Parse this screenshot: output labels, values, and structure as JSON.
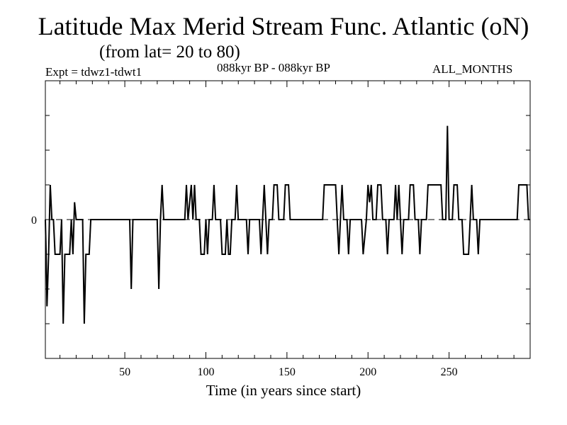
{
  "title": "Latitude Max Merid Stream Func. Atlantic (oN)",
  "subtitle": "(from lat= 20 to 80)",
  "expt": "Expt = tdwz1-tdwt1",
  "period": "088kyr BP - 088kyr BP",
  "months": "ALL_MONTHS",
  "chart_data": {
    "type": "line",
    "xlabel": "Time (in years since start)",
    "ylabel": "",
    "xlim": [
      1,
      300
    ],
    "ylim": [
      -4,
      4
    ],
    "x_ticks": [
      50,
      100,
      150,
      200,
      250
    ],
    "y_tick_labels": [
      {
        "value": 0,
        "label": "0"
      }
    ],
    "zero_line": "dashed",
    "series": [
      {
        "points": [
          [
            1,
            0
          ],
          [
            1.5,
            -1
          ],
          [
            2,
            -2.5
          ],
          [
            3,
            -1
          ],
          [
            4,
            1
          ],
          [
            5,
            0
          ],
          [
            6,
            0
          ],
          [
            7,
            -1
          ],
          [
            10,
            -1
          ],
          [
            11,
            0
          ],
          [
            12,
            -3
          ],
          [
            13,
            -1
          ],
          [
            16,
            -1
          ],
          [
            17,
            0
          ],
          [
            18,
            -1
          ],
          [
            19,
            0.5
          ],
          [
            20,
            0
          ],
          [
            24,
            0
          ],
          [
            25,
            -3
          ],
          [
            26,
            -1
          ],
          [
            28,
            -1
          ],
          [
            29,
            0
          ],
          [
            53,
            0
          ],
          [
            54,
            -2
          ],
          [
            55,
            0
          ],
          [
            70,
            0
          ],
          [
            71,
            -2
          ],
          [
            72,
            0
          ],
          [
            73,
            1
          ],
          [
            74,
            0
          ],
          [
            87,
            0
          ],
          [
            88,
            1
          ],
          [
            89,
            0
          ],
          [
            91,
            1
          ],
          [
            92,
            0
          ],
          [
            93,
            1
          ],
          [
            94,
            0
          ],
          [
            96,
            0
          ],
          [
            97,
            -1
          ],
          [
            99,
            -1
          ],
          [
            100,
            0
          ],
          [
            101,
            -1
          ],
          [
            102,
            0
          ],
          [
            104,
            0
          ],
          [
            105,
            1
          ],
          [
            106,
            0
          ],
          [
            109,
            0
          ],
          [
            110,
            -1
          ],
          [
            112,
            -1
          ],
          [
            113,
            0
          ],
          [
            114,
            -1
          ],
          [
            115,
            -1
          ],
          [
            116,
            0
          ],
          [
            118,
            0
          ],
          [
            119,
            1
          ],
          [
            120,
            0
          ],
          [
            125,
            0
          ],
          [
            126,
            -1
          ],
          [
            127,
            0
          ],
          [
            133,
            0
          ],
          [
            134,
            -1
          ],
          [
            135,
            0
          ],
          [
            136,
            1
          ],
          [
            137,
            0
          ],
          [
            138,
            -1
          ],
          [
            139,
            0
          ],
          [
            141,
            0
          ],
          [
            142,
            1
          ],
          [
            144,
            1
          ],
          [
            145,
            0
          ],
          [
            148,
            0
          ],
          [
            149,
            1
          ],
          [
            151,
            1
          ],
          [
            152,
            0
          ],
          [
            172,
            0
          ],
          [
            173,
            1
          ],
          [
            180,
            1
          ],
          [
            181,
            0
          ],
          [
            182,
            -1
          ],
          [
            183,
            0
          ],
          [
            184,
            1
          ],
          [
            185,
            0
          ],
          [
            187,
            0
          ],
          [
            188,
            -1
          ],
          [
            189,
            0
          ],
          [
            196,
            0
          ],
          [
            197,
            -1
          ],
          [
            199,
            0
          ],
          [
            200,
            1
          ],
          [
            201,
            0.5
          ],
          [
            202,
            1
          ],
          [
            203,
            0
          ],
          [
            205,
            0
          ],
          [
            206,
            1
          ],
          [
            208,
            1
          ],
          [
            209,
            0
          ],
          [
            211,
            0
          ],
          [
            212,
            -1
          ],
          [
            213,
            0
          ],
          [
            216,
            0
          ],
          [
            217,
            1
          ],
          [
            218,
            0
          ],
          [
            219,
            1
          ],
          [
            220,
            0
          ],
          [
            221,
            -1
          ],
          [
            222,
            0
          ],
          [
            225,
            0
          ],
          [
            226,
            1
          ],
          [
            228,
            1
          ],
          [
            229,
            0
          ],
          [
            231,
            0
          ],
          [
            232,
            -1
          ],
          [
            233,
            0
          ],
          [
            236,
            0
          ],
          [
            237,
            1
          ],
          [
            245,
            1
          ],
          [
            246,
            0
          ],
          [
            248,
            0
          ],
          [
            249,
            2.7
          ],
          [
            250,
            0
          ],
          [
            252,
            0
          ],
          [
            253,
            1
          ],
          [
            255,
            1
          ],
          [
            256,
            0
          ],
          [
            258,
            0
          ],
          [
            259,
            -1
          ],
          [
            262,
            -1
          ],
          [
            263,
            0
          ],
          [
            264,
            1
          ],
          [
            265,
            0
          ],
          [
            267,
            0
          ],
          [
            268,
            -1
          ],
          [
            269,
            0
          ],
          [
            292,
            0
          ],
          [
            293,
            1
          ],
          [
            298,
            1
          ],
          [
            299,
            0
          ],
          [
            300,
            0
          ]
        ]
      }
    ]
  }
}
